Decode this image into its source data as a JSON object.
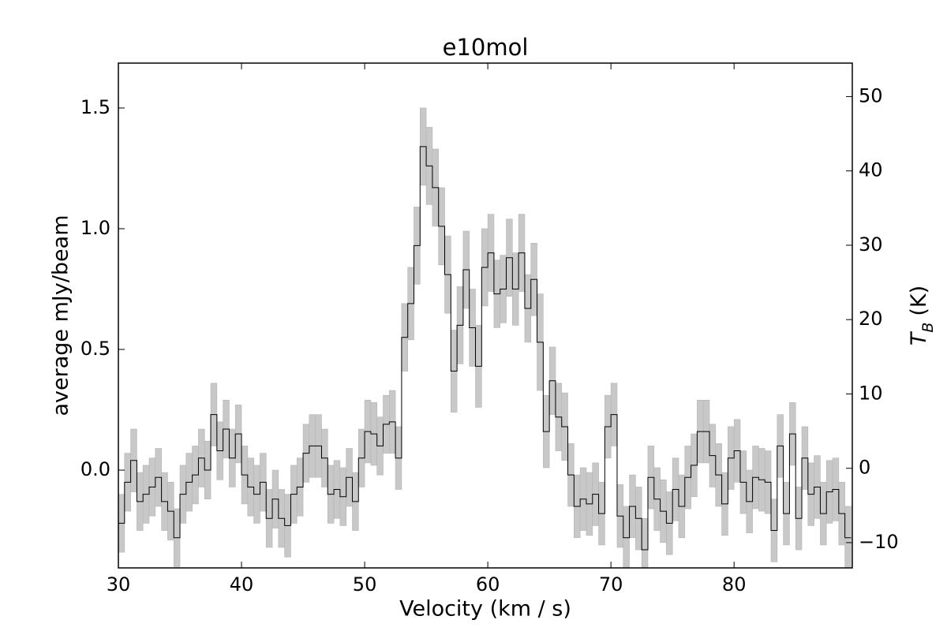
{
  "chart_data": {
    "type": "step",
    "title": "e10mol",
    "xlabel": "Velocity (km / s)",
    "ylabel": "average mJy/beam",
    "y2label": {
      "symbol": "T",
      "subscript": "B",
      "unit": "(K)"
    },
    "x": [
      30.25,
      30.75,
      31.25,
      31.75,
      32.25,
      32.75,
      33.25,
      33.75,
      34.25,
      34.75,
      35.25,
      35.75,
      36.25,
      36.75,
      37.25,
      37.75,
      38.25,
      38.75,
      39.25,
      39.75,
      40.25,
      40.75,
      41.25,
      41.75,
      42.25,
      42.75,
      43.25,
      43.75,
      44.25,
      44.75,
      45.25,
      45.75,
      46.25,
      46.75,
      47.25,
      47.75,
      48.25,
      48.75,
      49.25,
      49.75,
      50.25,
      50.75,
      51.25,
      51.75,
      52.25,
      52.75,
      53.25,
      53.75,
      54.25,
      54.75,
      55.25,
      55.75,
      56.25,
      56.75,
      57.25,
      57.75,
      58.25,
      58.75,
      59.25,
      59.75,
      60.25,
      60.75,
      61.25,
      61.75,
      62.25,
      62.75,
      63.25,
      63.75,
      64.25,
      64.75,
      65.25,
      65.75,
      66.25,
      66.75,
      67.25,
      67.75,
      68.25,
      68.75,
      69.25,
      69.75,
      70.25,
      70.75,
      71.25,
      71.75,
      72.25,
      72.75,
      73.25,
      73.75,
      74.25,
      74.75,
      75.25,
      75.75,
      76.25,
      76.75,
      77.25,
      77.75,
      78.25,
      78.75,
      79.25,
      79.75,
      80.25,
      80.75,
      81.25,
      81.75,
      82.25,
      82.75,
      83.25,
      83.75,
      84.25,
      84.75,
      85.25,
      85.75,
      86.25,
      86.75,
      87.25,
      87.75,
      88.25,
      88.75,
      89.25
    ],
    "series": [
      {
        "name": "average",
        "color": "#000000",
        "band_color": "#c8c8c8",
        "values": [
          -0.22,
          -0.05,
          0.04,
          -0.13,
          -0.1,
          -0.07,
          -0.03,
          -0.13,
          -0.17,
          -0.28,
          -0.1,
          -0.05,
          -0.02,
          0.05,
          0.0,
          0.23,
          0.08,
          0.17,
          0.05,
          0.15,
          -0.02,
          -0.07,
          -0.1,
          -0.05,
          -0.2,
          -0.12,
          -0.2,
          -0.23,
          -0.1,
          -0.07,
          0.07,
          0.1,
          0.1,
          0.05,
          -0.1,
          -0.08,
          -0.11,
          -0.03,
          -0.13,
          0.05,
          0.16,
          0.15,
          0.1,
          0.19,
          0.2,
          0.05,
          0.55,
          0.69,
          0.93,
          1.34,
          1.26,
          1.17,
          1.01,
          0.81,
          0.41,
          0.6,
          0.83,
          0.59,
          0.43,
          0.84,
          0.9,
          0.73,
          0.75,
          0.88,
          0.75,
          0.9,
          0.67,
          0.79,
          0.53,
          0.16,
          0.37,
          0.22,
          0.18,
          -0.02,
          -0.15,
          -0.12,
          -0.14,
          -0.1,
          -0.18,
          0.18,
          0.23,
          -0.19,
          -0.28,
          -0.15,
          -0.2,
          -0.33,
          -0.03,
          -0.12,
          -0.17,
          -0.22,
          -0.08,
          -0.15,
          -0.03,
          0.02,
          0.16,
          0.16,
          0.06,
          -0.02,
          -0.14,
          0.05,
          0.08,
          -0.05,
          -0.13,
          -0.03,
          -0.04,
          -0.05,
          -0.25,
          0.1,
          -0.18,
          0.15,
          -0.2,
          0.05,
          -0.1,
          -0.07,
          -0.18,
          -0.09,
          -0.08,
          -0.18,
          -0.28
        ],
        "errors": [
          0.12,
          0.12,
          0.13,
          0.12,
          0.12,
          0.12,
          0.12,
          0.12,
          0.12,
          0.12,
          0.12,
          0.12,
          0.12,
          0.12,
          0.12,
          0.13,
          0.12,
          0.12,
          0.12,
          0.12,
          0.12,
          0.12,
          0.12,
          0.12,
          0.12,
          0.12,
          0.12,
          0.13,
          0.12,
          0.12,
          0.12,
          0.13,
          0.13,
          0.12,
          0.12,
          0.12,
          0.12,
          0.12,
          0.12,
          0.12,
          0.13,
          0.13,
          0.12,
          0.12,
          0.13,
          0.13,
          0.14,
          0.15,
          0.16,
          0.16,
          0.16,
          0.16,
          0.16,
          0.16,
          0.17,
          0.16,
          0.16,
          0.16,
          0.17,
          0.16,
          0.16,
          0.14,
          0.14,
          0.16,
          0.15,
          0.16,
          0.14,
          0.15,
          0.2,
          0.15,
          0.14,
          0.14,
          0.14,
          0.13,
          0.13,
          0.13,
          0.13,
          0.13,
          0.13,
          0.13,
          0.13,
          0.13,
          0.13,
          0.13,
          0.13,
          0.13,
          0.13,
          0.13,
          0.13,
          0.13,
          0.13,
          0.13,
          0.13,
          0.13,
          0.13,
          0.13,
          0.13,
          0.13,
          0.13,
          0.13,
          0.13,
          0.13,
          0.13,
          0.13,
          0.13,
          0.13,
          0.13,
          0.13,
          0.13,
          0.13,
          0.13,
          0.13,
          0.13,
          0.13,
          0.13,
          0.13,
          0.13,
          0.13,
          0.13
        ]
      }
    ],
    "xlim": [
      30,
      89.6
    ],
    "ylim": [
      -0.405,
      1.686
    ],
    "y2lim": [
      -13.4,
      54.5
    ],
    "xticks": [
      30,
      40,
      50,
      60,
      70,
      80
    ],
    "yticks": [
      {
        "value": 0,
        "label": "0.0"
      },
      {
        "value": 0.5,
        "label": "0.5"
      },
      {
        "value": 1,
        "label": "1.0"
      },
      {
        "value": 1.5,
        "label": "1.5"
      }
    ],
    "y2ticks": [
      {
        "value": -10,
        "label": "−10"
      },
      0,
      10,
      20,
      30,
      40,
      50
    ]
  }
}
